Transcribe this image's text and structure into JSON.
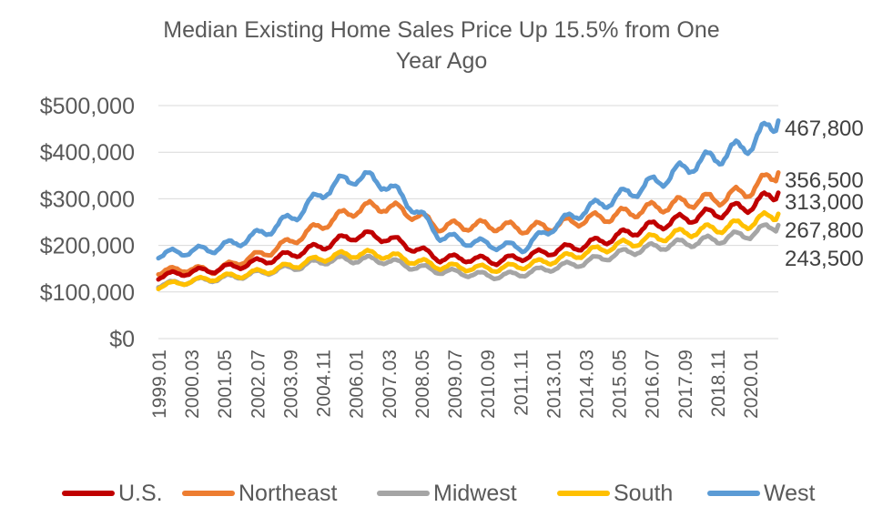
{
  "chart_data": {
    "type": "line",
    "title_lines": [
      "Median Existing Home Sales Price Up 15.5% from One",
      "Year Ago"
    ],
    "xlabel": "",
    "ylabel": "",
    "ylim": [
      0,
      500000
    ],
    "y_ticks": [
      0,
      100000,
      200000,
      300000,
      400000,
      500000
    ],
    "y_tick_labels": [
      "$0",
      "$100,000",
      "$200,000",
      "$300,000",
      "$400,000",
      "$500,000"
    ],
    "x_start": "1999.01",
    "x_end": "2021.01",
    "x_tick_labels": [
      "1999.01",
      "2000.03",
      "2001.05",
      "2002.07",
      "2003.09",
      "2004.11",
      "2006.01",
      "2007.03",
      "2008.05",
      "2009.07",
      "2010.09",
      "2011.11",
      "2013.01",
      "2014.03",
      "2015.05",
      "2016.07",
      "2017.09",
      "2018.11",
      "2020.01"
    ],
    "x_anchor_labels": [
      "1999.01",
      "2000.01",
      "2001.01",
      "2002.01",
      "2003.01",
      "2004.01",
      "2005.01",
      "2006.01",
      "2007.01",
      "2008.01",
      "2009.01",
      "2010.01",
      "2011.01",
      "2012.01",
      "2013.01",
      "2014.01",
      "2015.01",
      "2016.01",
      "2017.01",
      "2018.01",
      "2019.01",
      "2020.01",
      "2021.01"
    ],
    "gridlines": true,
    "legend_position": "bottom",
    "series": [
      {
        "name": "U.S.",
        "color": "#C00000",
        "values": [
          133000,
          142000,
          148000,
          158000,
          170000,
          185000,
          202000,
          222000,
          218000,
          196000,
          172000,
          172000,
          166000,
          176000,
          188000,
          199000,
          214000,
          233000,
          248000,
          261000,
          272000,
          285000,
          313000
        ],
        "end_label": "313,000"
      },
      {
        "name": "Northeast",
        "color": "#ED7D31",
        "values": [
          143000,
          150000,
          146000,
          168000,
          188000,
          218000,
          250000,
          277000,
          285000,
          268000,
          240000,
          243000,
          242000,
          236000,
          242000,
          254000,
          262000,
          274000,
          285000,
          295000,
          301000,
          319000,
          356500
        ],
        "end_label": "356,500"
      },
      {
        "name": "Midwest",
        "color": "#A5A5A5",
        "values": [
          115000,
          122000,
          128000,
          135000,
          145000,
          155000,
          168000,
          170000,
          168000,
          155000,
          145000,
          139000,
          134000,
          140000,
          152000,
          162000,
          177000,
          190000,
          200000,
          207000,
          214000,
          225000,
          243500
        ],
        "end_label": "243,500"
      },
      {
        "name": "South",
        "color": "#FFC000",
        "values": [
          112000,
          122000,
          130000,
          137000,
          147000,
          160000,
          175000,
          182000,
          180000,
          168000,
          155000,
          152000,
          150000,
          157000,
          168000,
          182000,
          196000,
          208000,
          220000,
          230000,
          238000,
          248000,
          267800
        ],
        "end_label": "267,800"
      },
      {
        "name": "West",
        "color": "#5B9BD5",
        "values": [
          180000,
          187000,
          193000,
          210000,
          235000,
          270000,
          322000,
          348000,
          335000,
          285000,
          220000,
          208000,
          200000,
          195000,
          240000,
          272000,
          296000,
          320000,
          345000,
          375000,
          393000,
          418000,
          467800
        ],
        "end_label": "467,800"
      }
    ]
  }
}
